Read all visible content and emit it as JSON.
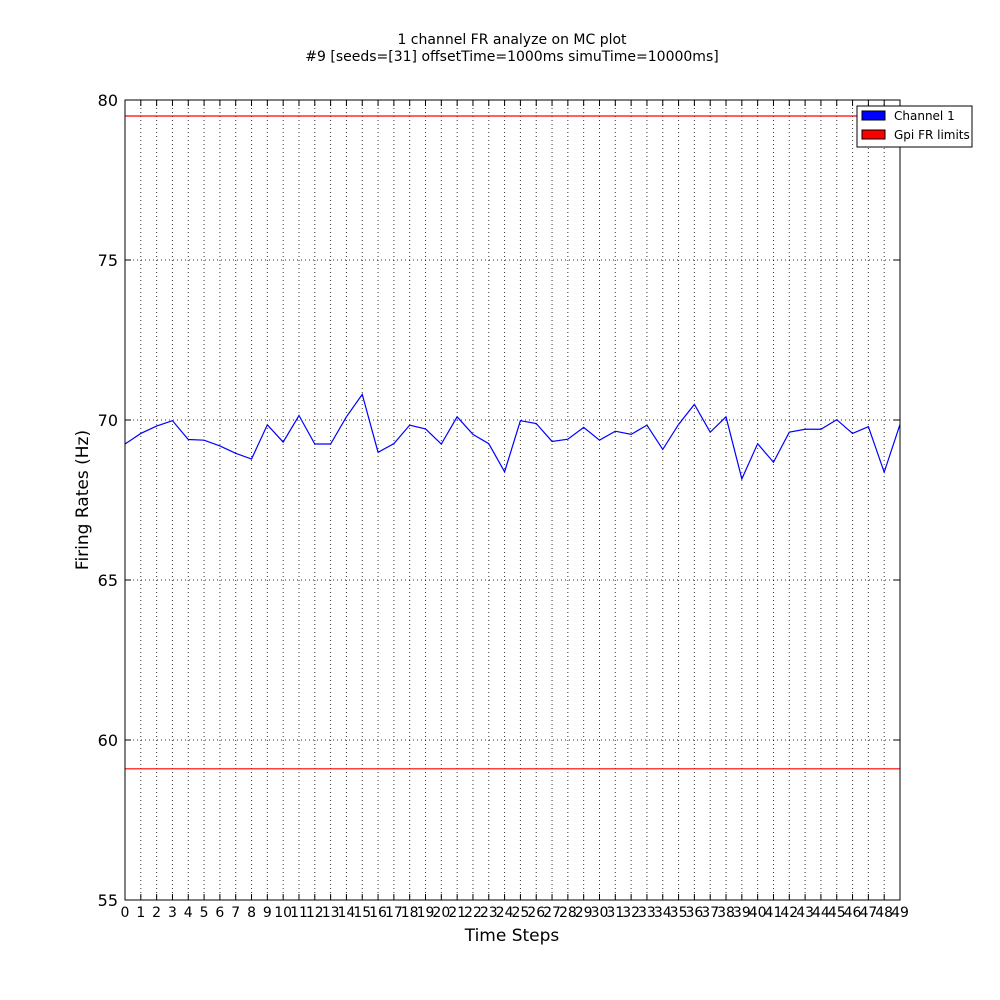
{
  "chart_data": {
    "type": "line",
    "title": "1 channel FR analyze on MC plot",
    "subtitle": "#9 [seeds=[31] offsetTime=1000ms simuTime=10000ms]",
    "xlabel": "Time Steps",
    "ylabel": "Firing Rates (Hz)",
    "xlim": [
      0,
      49
    ],
    "ylim": [
      55,
      80
    ],
    "yticks": [
      55,
      60,
      65,
      70,
      75,
      80
    ],
    "xticks": [
      0,
      1,
      2,
      3,
      4,
      5,
      6,
      7,
      8,
      9,
      10,
      11,
      12,
      13,
      14,
      15,
      16,
      17,
      18,
      19,
      20,
      21,
      22,
      23,
      24,
      25,
      26,
      27,
      28,
      29,
      30,
      31,
      32,
      33,
      34,
      35,
      36,
      37,
      38,
      39,
      40,
      41,
      42,
      43,
      44,
      45,
      46,
      47,
      48,
      49
    ],
    "grid": true,
    "legend_position": "top-right",
    "x": [
      0,
      1,
      2,
      3,
      4,
      5,
      6,
      7,
      8,
      9,
      10,
      11,
      12,
      13,
      14,
      15,
      16,
      17,
      18,
      19,
      20,
      21,
      22,
      23,
      24,
      25,
      26,
      27,
      28,
      29,
      30,
      31,
      32,
      33,
      34,
      35,
      36,
      37,
      38,
      39,
      40,
      41,
      42,
      43,
      44,
      45,
      46,
      47,
      48,
      49
    ],
    "series": [
      {
        "name": "Channel 1",
        "color": "#0000ff",
        "values": [
          69.25,
          69.58,
          69.81,
          69.98,
          69.39,
          69.37,
          69.19,
          68.96,
          68.78,
          69.85,
          69.31,
          70.14,
          69.25,
          69.25,
          70.1,
          70.8,
          68.99,
          69.26,
          69.84,
          69.72,
          69.25,
          70.1,
          69.55,
          69.26,
          68.38,
          69.98,
          69.89,
          69.33,
          69.4,
          69.77,
          69.37,
          69.65,
          69.55,
          69.84,
          69.08,
          69.86,
          70.49,
          69.62,
          70.1,
          68.16,
          69.26,
          68.68,
          69.62,
          69.71,
          69.71,
          70.01,
          69.58,
          69.79,
          68.37,
          69.86
        ]
      }
    ],
    "limits": {
      "name": "Gpi FR limits",
      "color": "#ff0000",
      "values": [
        59.1,
        79.5
      ]
    }
  }
}
